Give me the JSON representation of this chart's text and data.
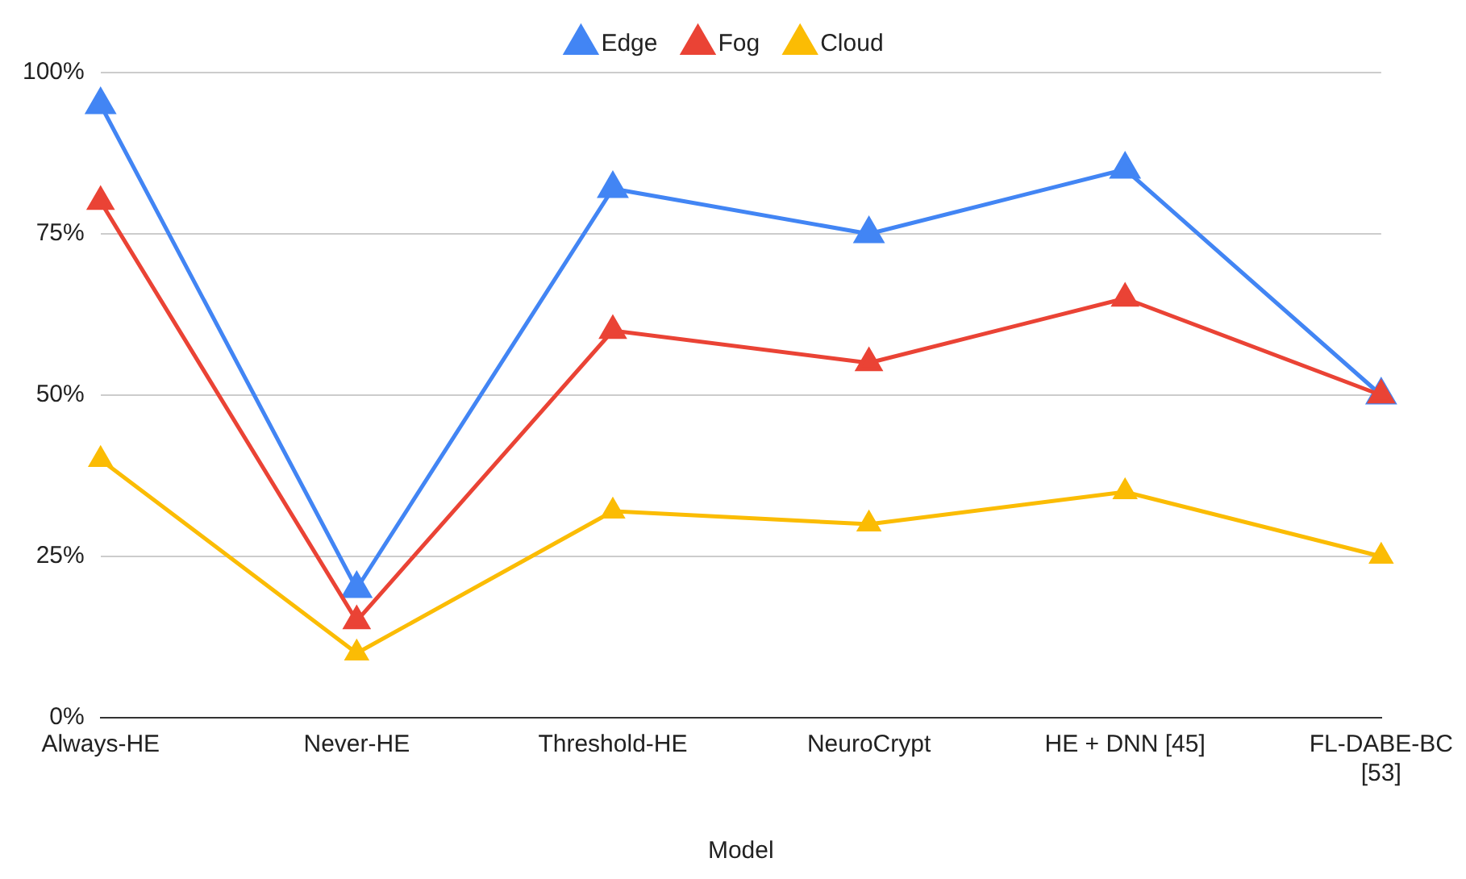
{
  "chart_data": {
    "type": "line",
    "xlabel": "Model",
    "categories": [
      "Always-HE",
      "Never-HE",
      "Threshold-HE",
      "NeuroCrypt",
      "HE + DNN [45]",
      "FL-DABE-BC [53]"
    ],
    "series": [
      {
        "name": "Edge",
        "color": "#4285f4",
        "values": [
          95,
          20,
          82,
          75,
          85,
          50
        ]
      },
      {
        "name": "Fog",
        "color": "#ea4335",
        "values": [
          80,
          15,
          60,
          55,
          65,
          50
        ]
      },
      {
        "name": "Cloud",
        "color": "#fbbc04",
        "values": [
          40,
          10,
          32,
          30,
          35,
          25
        ]
      }
    ],
    "ylim": [
      0,
      100
    ],
    "yticks": [
      {
        "value": 0,
        "label": "0%"
      },
      {
        "value": 25,
        "label": "25%"
      },
      {
        "value": 50,
        "label": "50%"
      },
      {
        "value": 75,
        "label": "75%"
      },
      {
        "value": 100,
        "label": "100%"
      }
    ],
    "grid": "y",
    "legend": "top",
    "marker": "triangle",
    "line_style": "solid"
  }
}
